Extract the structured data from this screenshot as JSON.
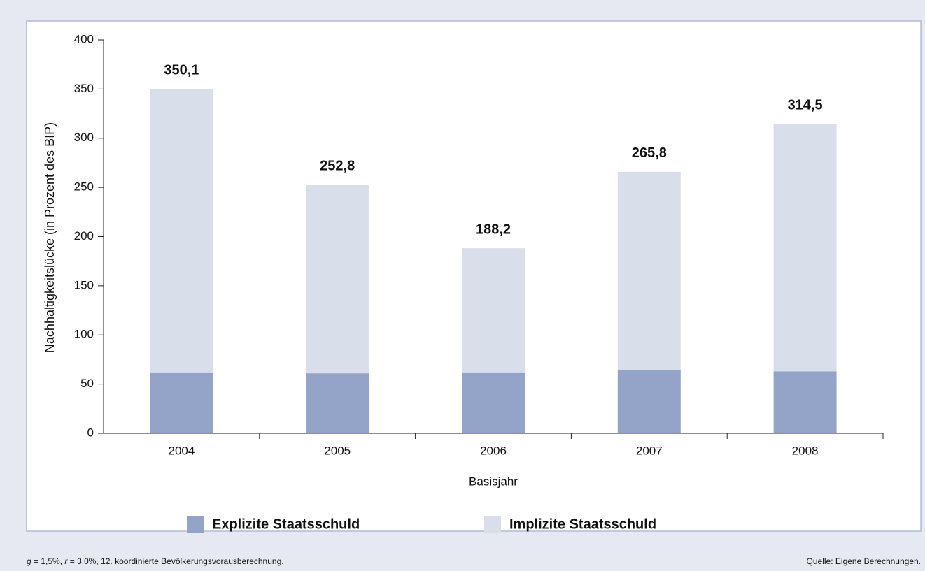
{
  "chart_data": {
    "type": "stacked_bar",
    "y_label": "Nachhaltigkeitslücke (in Prozent des BIP)",
    "x_label": "Basisjahr",
    "categories": [
      "2004",
      "2005",
      "2006",
      "2007",
      "2008"
    ],
    "series": [
      {
        "name": "Explizite Staatsschuld",
        "color": "#94a3c8",
        "values": [
          62,
          61,
          62,
          64,
          63
        ]
      },
      {
        "name": "Implizite Staatsschuld",
        "color": "#d9deeb",
        "values": [
          288.1,
          191.8,
          126.2,
          201.8,
          251.5
        ]
      }
    ],
    "totals": [
      350.1,
      252.8,
      188.2,
      265.8,
      314.5
    ],
    "total_labels": [
      "350,1",
      "252,8",
      "188,2",
      "265,8",
      "314,5"
    ],
    "ylim": [
      0,
      400
    ],
    "yticks": [
      0,
      50,
      100,
      150,
      200,
      250,
      300,
      350,
      400
    ],
    "grid": false,
    "note": [
      "g",
      " = 1,5%, ",
      "r",
      " = 3,0%, 12. koordinierte Bevölkerungsvorausberechnung."
    ],
    "source": "Quelle: Eigene Berechnungen."
  }
}
